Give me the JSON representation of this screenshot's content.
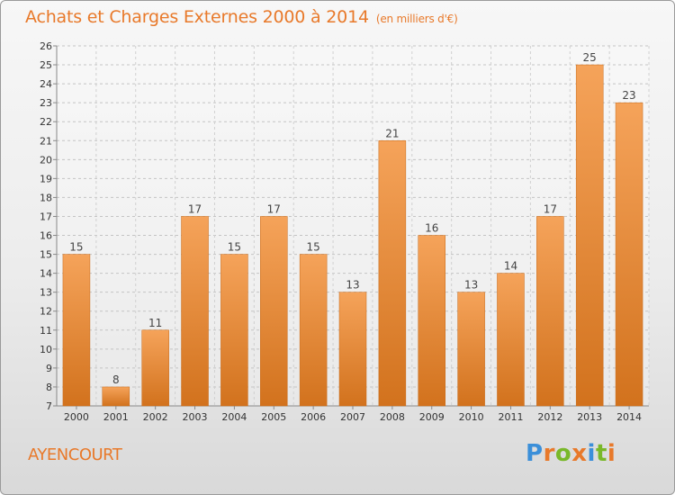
{
  "header": {
    "title": "Achats et Charges Externes 2000 à 2014",
    "unit": "(en milliers d'€)"
  },
  "footer": {
    "location": "AYENCOURT",
    "logo_text": "Proxiti",
    "logo_colors": [
      "#3b8fd9",
      "#e8792a",
      "#79b829",
      "#e8792a",
      "#3b8fd9",
      "#79b829",
      "#e8792a"
    ]
  },
  "colors": {
    "accent": "#e8792a",
    "bar_top": "#f5a35a",
    "bar_bottom": "#d2721d"
  },
  "chart_data": {
    "type": "bar",
    "title": "Achats et Charges Externes 2000 à 2014",
    "subtitle": "(en milliers d'€)",
    "categories": [
      "2000",
      "2001",
      "2002",
      "2003",
      "2004",
      "2005",
      "2006",
      "2007",
      "2008",
      "2009",
      "2010",
      "2011",
      "2012",
      "2013",
      "2014"
    ],
    "values": [
      15,
      8,
      11,
      17,
      15,
      17,
      15,
      13,
      21,
      16,
      13,
      14,
      17,
      25,
      23
    ],
    "ylim": [
      7,
      26
    ],
    "yticks": [
      7,
      8,
      9,
      10,
      11,
      12,
      13,
      14,
      15,
      16,
      17,
      18,
      19,
      20,
      21,
      22,
      23,
      24,
      25,
      26
    ],
    "xlabel": "",
    "ylabel": "",
    "grid": true,
    "data_labels": true
  }
}
